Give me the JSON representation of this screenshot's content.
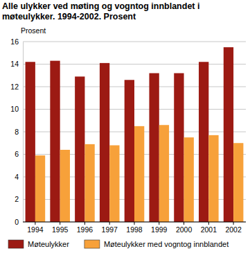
{
  "chart_data": {
    "type": "bar",
    "title": "Alle ulykker ved møting og vogntog innblandet i møteulykker. 1994-2002. Prosent",
    "y_label": "Prosent",
    "categories": [
      "1994",
      "1995",
      "1996",
      "1997",
      "1998",
      "1999",
      "2000",
      "2001",
      "2002"
    ],
    "series": [
      {
        "name": "Møteulykker",
        "color": "#9c1a13",
        "values": [
          14.2,
          14.3,
          12.9,
          14.1,
          12.6,
          13.2,
          13.2,
          14.2,
          15.5
        ]
      },
      {
        "name": "Møteulykker med vogntog innblandet",
        "color": "#f7a13a",
        "values": [
          5.9,
          6.4,
          6.9,
          6.8,
          8.5,
          8.6,
          7.5,
          7.7,
          7.0
        ]
      }
    ],
    "ylim": [
      0,
      16
    ],
    "yticks": [
      0,
      2,
      4,
      6,
      8,
      10,
      12,
      14,
      16
    ],
    "grid": true,
    "legend": "bottom"
  }
}
